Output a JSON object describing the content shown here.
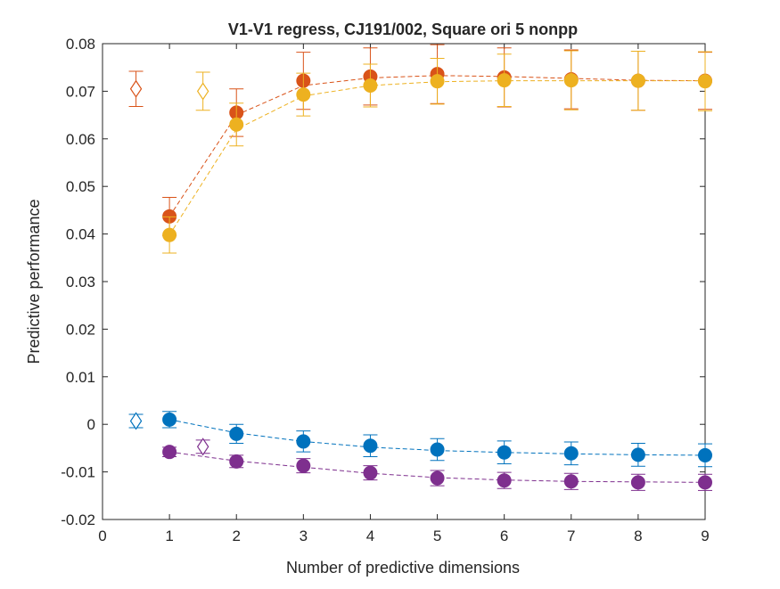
{
  "chart_data": {
    "type": "scatter",
    "title": "V1-V1 regress, CJ191/002, Square ori 5 nonpp",
    "xlabel": "Number of predictive dimensions",
    "ylabel": "Predictive performance",
    "xlim": [
      0,
      9
    ],
    "ylim": [
      -0.02,
      0.08
    ],
    "xticks": [
      0,
      1,
      2,
      3,
      4,
      5,
      6,
      7,
      8,
      9
    ],
    "yticks": [
      -0.02,
      -0.01,
      0,
      0.01,
      0.02,
      0.03,
      0.04,
      0.05,
      0.06,
      0.07,
      0.08
    ],
    "ytick_labels": [
      "-0.02",
      "-0.01",
      "0",
      "0.01",
      "0.02",
      "0.03",
      "0.04",
      "0.05",
      "0.06",
      "0.07",
      "0.08"
    ],
    "grid": false,
    "legend": false,
    "series": [
      {
        "color": "#D95319",
        "x": [
          1,
          2,
          3,
          4,
          5,
          6,
          7,
          8,
          9
        ],
        "y": [
          0.0437,
          0.0655,
          0.0722,
          0.0731,
          0.0736,
          0.0729,
          0.0725,
          0.0722,
          0.0722
        ],
        "err": [
          0.004,
          0.005,
          0.006,
          0.006,
          0.0062,
          0.0062,
          0.0062,
          0.0062,
          0.006
        ],
        "fit": [
          0.0437,
          0.065,
          0.0712,
          0.0728,
          0.0733,
          0.0731,
          0.0727,
          0.0723,
          0.0722
        ],
        "ridge": {
          "x": 0.5,
          "y": 0.0705,
          "err": 0.0037
        }
      },
      {
        "color": "#EDB120",
        "x": [
          1,
          2,
          3,
          4,
          5,
          6,
          7,
          8,
          9
        ],
        "y": [
          0.0398,
          0.063,
          0.0693,
          0.0712,
          0.0721,
          0.0723,
          0.0723,
          0.0722,
          0.0721
        ],
        "err": [
          0.0038,
          0.0045,
          0.0045,
          0.0045,
          0.0048,
          0.0055,
          0.0062,
          0.0062,
          0.0062
        ],
        "fit": [
          0.0398,
          0.062,
          0.069,
          0.0712,
          0.072,
          0.0722,
          0.0722,
          0.0722,
          0.0722
        ],
        "ridge": {
          "x": 1.5,
          "y": 0.07,
          "err": 0.004
        }
      },
      {
        "color": "#0072BD",
        "x": [
          1,
          2,
          3,
          4,
          5,
          6,
          7,
          8,
          9
        ],
        "y": [
          0.001,
          -0.002,
          -0.0036,
          -0.0045,
          -0.0053,
          -0.0059,
          -0.0061,
          -0.0064,
          -0.0065
        ],
        "err": [
          0.0017,
          0.002,
          0.0022,
          0.0023,
          0.0023,
          0.0024,
          0.0024,
          0.0024,
          0.0024
        ],
        "fit": [
          0.001,
          -0.0018,
          -0.0036,
          -0.0048,
          -0.0055,
          -0.0059,
          -0.0062,
          -0.0064,
          -0.0065
        ],
        "ridge": {
          "x": 0.5,
          "y": 0.0007,
          "err": 0.0014
        }
      },
      {
        "color": "#7E2F8E",
        "x": [
          1,
          2,
          3,
          4,
          5,
          6,
          7,
          8,
          9
        ],
        "y": [
          -0.0058,
          -0.0078,
          -0.0087,
          -0.0102,
          -0.0113,
          -0.0118,
          -0.012,
          -0.0122,
          -0.0122
        ],
        "err": [
          0.001,
          0.0013,
          0.0015,
          0.0015,
          0.0016,
          0.0017,
          0.0017,
          0.0017,
          0.0017
        ],
        "fit": [
          -0.0058,
          -0.0077,
          -0.009,
          -0.0103,
          -0.0112,
          -0.0117,
          -0.012,
          -0.0121,
          -0.0122
        ],
        "ridge": {
          "x": 1.5,
          "y": -0.0047,
          "err": 0.0014
        }
      }
    ]
  }
}
